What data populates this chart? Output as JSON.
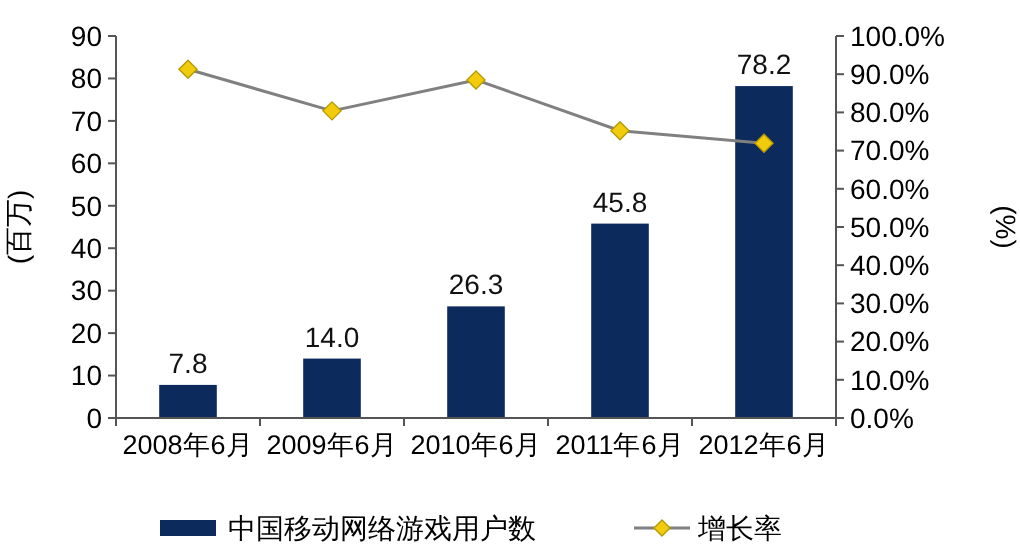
{
  "chart_data": {
    "type": "bar",
    "categories": [
      "2008年6月",
      "2009年6月",
      "2010年6月",
      "2011年6月",
      "2012年6月"
    ],
    "ylabel": "(百万)",
    "y2label": "(%)",
    "ylim": [
      0,
      90
    ],
    "yticks": [
      0,
      10,
      20,
      30,
      40,
      50,
      60,
      70,
      80,
      90
    ],
    "y2lim": [
      0,
      100
    ],
    "y2ticks": [
      {
        "value": 0,
        "label": "0.0%"
      },
      {
        "value": 10,
        "label": "10.0%"
      },
      {
        "value": 20,
        "label": "20.0%"
      },
      {
        "value": 30,
        "label": "30.0%"
      },
      {
        "value": 40,
        "label": "40.0%"
      },
      {
        "value": 50,
        "label": "50.0%"
      },
      {
        "value": 60,
        "label": "60.0%"
      },
      {
        "value": 70,
        "label": "70.0%"
      },
      {
        "value": 80,
        "label": "80.0%"
      },
      {
        "value": 90,
        "label": "90.0%"
      },
      {
        "value": 100,
        "label": "100.0%"
      }
    ],
    "series": [
      {
        "name": "中国移动网络游戏用户数",
        "color": "#0d2a5c",
        "values": [
          7.8,
          14.0,
          26.3,
          45.8,
          78.2
        ],
        "value_labels": [
          "7.8",
          "14.0",
          "26.3",
          "45.8",
          "78.2"
        ]
      },
      {
        "name": "增长率",
        "type": "line",
        "axis": "y2",
        "color": "#f2cc0c",
        "values": [
          91.3,
          80.4,
          88.5,
          75.2,
          71.9
        ]
      }
    ],
    "marker": "diamond",
    "grid": false,
    "legend": "bottom"
  }
}
